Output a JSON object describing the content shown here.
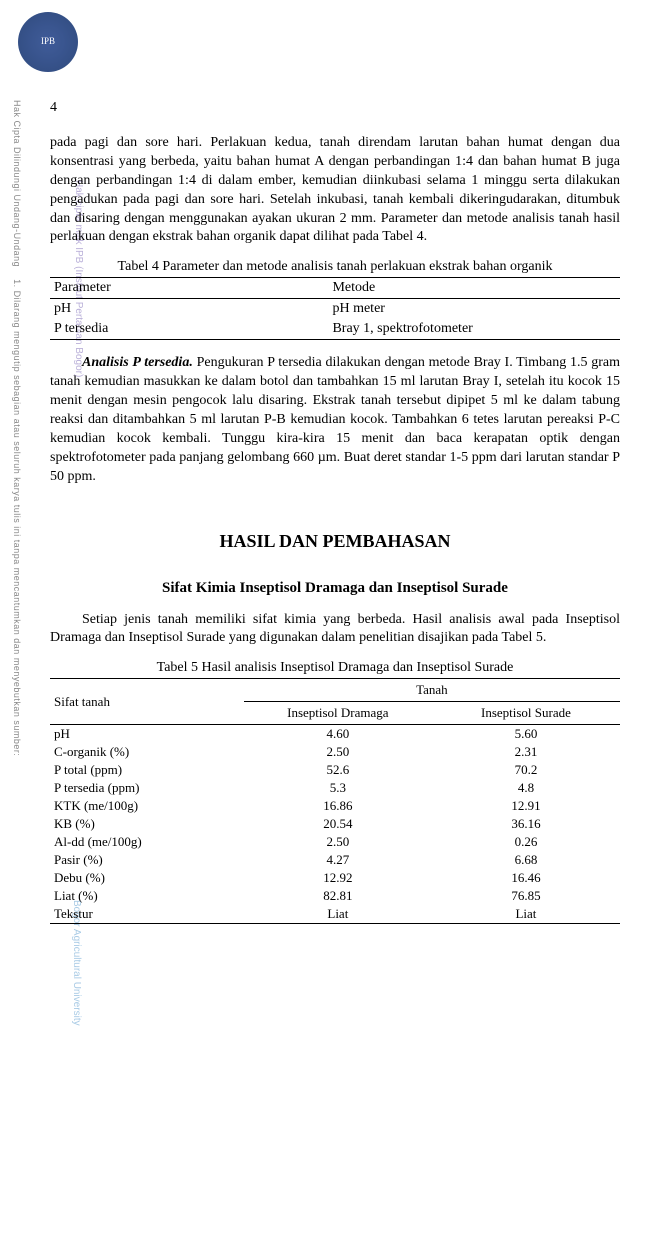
{
  "page_number": "4",
  "watermark": {
    "logo_text": "IPB",
    "left_gray": "1. Dilarang mengutip sebagian atau seluruh karya tulis ini tanpa mencantumkan dan menyebutkan sumber:",
    "left_gray2": "Hak Cipta Dilindungi Undang-Undang",
    "purple": "Hak cipta milik IPB (Institut Pertanian Bogor)",
    "blue": "Bogor Agricultural University"
  },
  "para1": "pada pagi dan sore hari. Perlakuan kedua, tanah direndam larutan bahan humat dengan dua konsentrasi yang berbeda, yaitu bahan humat A dengan perbandingan 1:4 dan bahan humat B juga dengan perbandingan 1:4 di dalam ember, kemudian diinkubasi selama 1 minggu serta dilakukan pengadukan pada pagi dan sore hari. Setelah inkubasi, tanah kembali dikeringudarakan, ditumbuk dan disaring dengan menggunakan ayakan ukuran 2 mm. Parameter dan metode analisis tanah hasil perlakuan dengan ekstrak bahan organik dapat dilihat pada Tabel 4.",
  "table4": {
    "caption": "Tabel 4  Parameter dan metode analisis tanah perlakuan ekstrak bahan organik",
    "header": {
      "param": "Parameter",
      "metode": "Metode"
    },
    "rows": [
      {
        "param": "pH",
        "metode": "pH meter"
      },
      {
        "param": "P tersedia",
        "metode": "Bray 1, spektrofotometer"
      }
    ]
  },
  "para2_lead": "Analisis P tersedia.",
  "para2_rest": " Pengukuran P tersedia dilakukan dengan metode Bray I. Timbang 1.5 gram tanah kemudian masukkan ke dalam botol dan tambahkan 15 ml larutan Bray I, setelah itu kocok 15 menit dengan mesin pengocok lalu disaring. Ekstrak tanah tersebut dipipet 5 ml ke dalam tabung reaksi dan ditambahkan 5 ml larutan P-B kemudian kocok. Tambahkan 6 tetes larutan pereaksi P-C kemudian kocok kembali. Tunggu kira-kira 15 menit dan baca kerapatan optik dengan spektrofotometer pada panjang gelombang 660 µm. Buat deret standar 1-5 ppm dari larutan standar P 50 ppm.",
  "heading1": "HASIL DAN PEMBAHASAN",
  "heading2": "Sifat Kimia Inseptisol Dramaga dan Inseptisol Surade",
  "para3": "Setiap jenis tanah memiliki sifat kimia yang berbeda. Hasil analisis awal pada Inseptisol Dramaga dan Inseptisol Surade yang digunakan dalam penelitian disajikan pada Tabel 5.",
  "table5": {
    "caption": "Tabel 5  Hasil analisis Inseptisol Dramaga dan Inseptisol Surade",
    "header": {
      "sifat": "Sifat tanah",
      "tanah": "Tanah",
      "col1": "Inseptisol Dramaga",
      "col2": "Inseptisol Surade"
    },
    "rows": [
      {
        "sifat": "pH",
        "c1": "4.60",
        "c2": "5.60"
      },
      {
        "sifat": "C-organik (%)",
        "c1": "2.50",
        "c2": "2.31"
      },
      {
        "sifat": "P total (ppm)",
        "c1": "52.6",
        "c2": "70.2"
      },
      {
        "sifat": "P tersedia (ppm)",
        "c1": "5.3",
        "c2": "4.8"
      },
      {
        "sifat": "KTK (me/100g)",
        "c1": "16.86",
        "c2": "12.91"
      },
      {
        "sifat": "KB (%)",
        "c1": "20.54",
        "c2": "36.16"
      },
      {
        "sifat": "Al-dd (me/100g)",
        "c1": "2.50",
        "c2": "0.26"
      },
      {
        "sifat": "Pasir (%)",
        "c1": "4.27",
        "c2": "6.68"
      },
      {
        "sifat": "Debu (%)",
        "c1": "12.92",
        "c2": "16.46"
      },
      {
        "sifat": "Liat (%)",
        "c1": "82.81",
        "c2": "76.85"
      },
      {
        "sifat": "Tekstur",
        "c1": "Liat",
        "c2": "Liat"
      }
    ]
  },
  "colors": {
    "text": "#000000",
    "bg": "#ffffff",
    "gray": "#888888",
    "purple": "#8b7bbf",
    "blue": "#6fa8d4",
    "logo_bg": "#1a3870"
  },
  "fonts": {
    "body_family": "Times New Roman",
    "body_size_pt": 11,
    "h1_size_pt": 14,
    "h2_size_pt": 12,
    "table_size_pt": 10
  }
}
